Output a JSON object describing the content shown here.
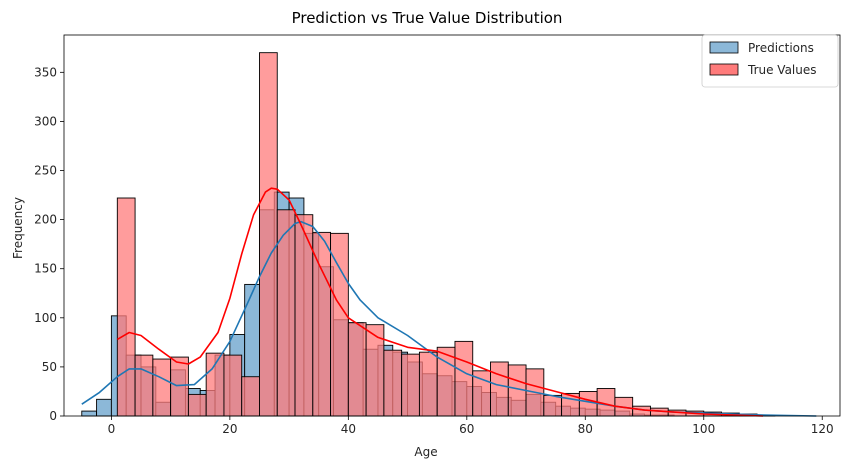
{
  "chart_data": {
    "type": "histogram",
    "title": "Prediction vs True Value Distribution",
    "xlabel": "Age",
    "ylabel": "Frequency",
    "xlim": [
      -8,
      123
    ],
    "ylim": [
      0,
      388
    ],
    "xticks": [
      0,
      20,
      40,
      60,
      80,
      100,
      120
    ],
    "yticks": [
      0,
      50,
      100,
      150,
      200,
      250,
      300,
      350
    ],
    "grid": false,
    "legend_position": "top-right",
    "series": [
      {
        "name": "Predictions",
        "color": "#1f77b4",
        "fill_color": "#8cb8d8",
        "bin_start": -5,
        "bin_width": 2.5,
        "counts": [
          5,
          17,
          102,
          62,
          50,
          14,
          47,
          28,
          26,
          62,
          83,
          134,
          210,
          228,
          222,
          186,
          152,
          98,
          95,
          68,
          72,
          65,
          55,
          43,
          41,
          35,
          30,
          24,
          19,
          16,
          22,
          14,
          10,
          8,
          7,
          6,
          5,
          2,
          1,
          1
        ]
      },
      {
        "name": "True Values",
        "color": "#ff0000",
        "fill_color": "#ff7b7b",
        "bin_start": 1,
        "bin_width": 3,
        "counts": [
          222,
          62,
          58,
          60,
          22,
          64,
          62,
          40,
          370,
          210,
          205,
          187,
          186,
          95,
          93,
          67,
          63,
          65,
          70,
          76,
          46,
          55,
          52,
          48,
          21,
          23,
          25,
          28,
          19,
          10,
          8,
          6,
          5,
          4,
          3,
          2,
          1
        ]
      }
    ],
    "kde": [
      {
        "name": "Predictions",
        "color": "#1f77b4",
        "points": [
          [
            -5,
            12
          ],
          [
            -2,
            24
          ],
          [
            1,
            40
          ],
          [
            3,
            48
          ],
          [
            5,
            48
          ],
          [
            8,
            40
          ],
          [
            11,
            31
          ],
          [
            14,
            32
          ],
          [
            17,
            48
          ],
          [
            20,
            76
          ],
          [
            23,
            115
          ],
          [
            25,
            142
          ],
          [
            27,
            166
          ],
          [
            29,
            184
          ],
          [
            31,
            196
          ],
          [
            32,
            198
          ],
          [
            34,
            193
          ],
          [
            36,
            178
          ],
          [
            38,
            156
          ],
          [
            40,
            135
          ],
          [
            42,
            118
          ],
          [
            45,
            100
          ],
          [
            50,
            82
          ],
          [
            55,
            60
          ],
          [
            60,
            43
          ],
          [
            65,
            32
          ],
          [
            70,
            26
          ],
          [
            75,
            20
          ],
          [
            80,
            15
          ],
          [
            85,
            10
          ],
          [
            90,
            6
          ],
          [
            95,
            4
          ],
          [
            100,
            3
          ],
          [
            110,
            1
          ],
          [
            119,
            0
          ]
        ]
      },
      {
        "name": "True Values",
        "color": "#ff0000",
        "points": [
          [
            1,
            78
          ],
          [
            3,
            85
          ],
          [
            5,
            82
          ],
          [
            8,
            68
          ],
          [
            11,
            55
          ],
          [
            13,
            53
          ],
          [
            15,
            60
          ],
          [
            18,
            85
          ],
          [
            20,
            120
          ],
          [
            22,
            165
          ],
          [
            24,
            205
          ],
          [
            26,
            228
          ],
          [
            27,
            232
          ],
          [
            28,
            231
          ],
          [
            30,
            220
          ],
          [
            32,
            195
          ],
          [
            35,
            155
          ],
          [
            38,
            118
          ],
          [
            40,
            100
          ],
          [
            45,
            80
          ],
          [
            50,
            70
          ],
          [
            55,
            66
          ],
          [
            60,
            55
          ],
          [
            65,
            43
          ],
          [
            70,
            33
          ],
          [
            75,
            25
          ],
          [
            80,
            17
          ],
          [
            85,
            10
          ],
          [
            90,
            6
          ],
          [
            95,
            4
          ],
          [
            100,
            2
          ],
          [
            110,
            0
          ]
        ]
      }
    ]
  }
}
